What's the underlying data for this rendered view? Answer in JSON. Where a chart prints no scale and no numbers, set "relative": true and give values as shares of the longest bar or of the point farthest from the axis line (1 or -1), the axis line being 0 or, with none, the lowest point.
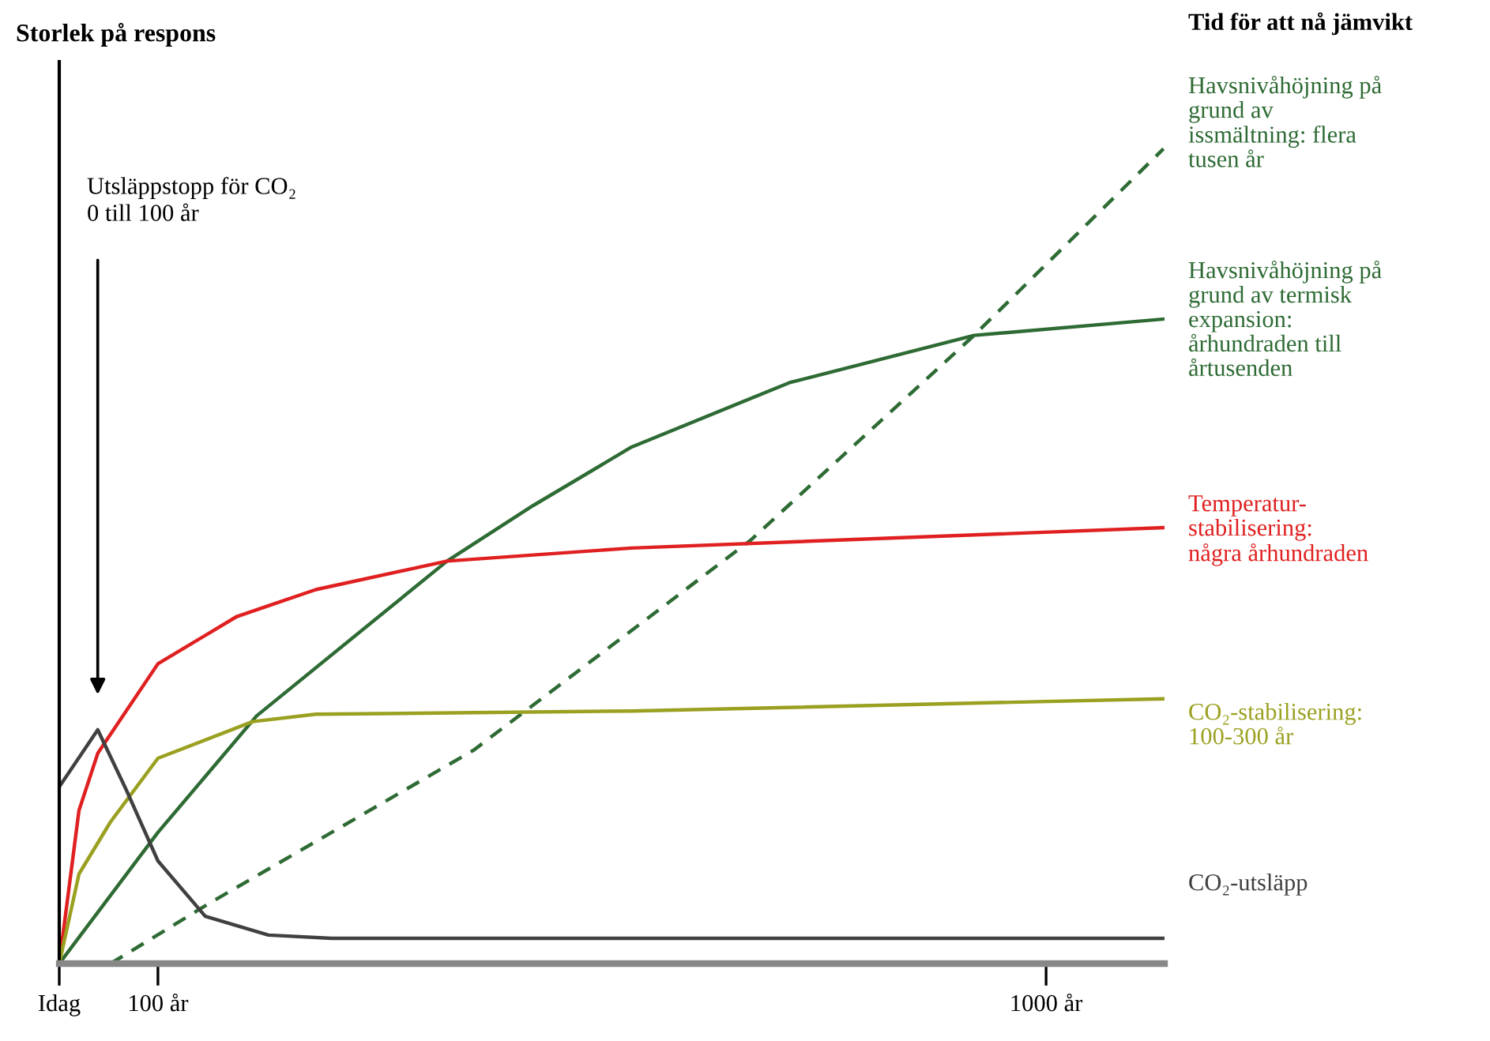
{
  "chart_data": {
    "type": "line",
    "relative": true,
    "ylabel": "Storlek på respons",
    "legend_title": "Tid för att nå jämvikt",
    "xlim": [
      0,
      1120
    ],
    "xticks": [
      {
        "value": 0,
        "label": "Idag"
      },
      {
        "value": 100,
        "label": "100 år"
      },
      {
        "value": 1000,
        "label": "1000 år"
      }
    ],
    "annotations": [
      "Utsläppstopp för CO₂\n0 till 100 år"
    ],
    "series": [
      {
        "name": "Havsnivåhöjning på\ngrund av\nissmältning: flera\ntusen år",
        "color": "#2e6b34",
        "line_style": "dashed",
        "x": [
          52,
          152,
          420,
          700,
          927,
          1119
        ],
        "values": [
          0,
          0.074,
          0.262,
          0.519,
          0.771,
          1.0
        ]
      },
      {
        "name": "Havsnivåhöjning på\ngrund av termisk\nexpansion:\nårhundraden till\nårtusenden",
        "color": "#2e6b34",
        "x": [
          0,
          100,
          200,
          393,
          480,
          580,
          740,
          927,
          1119
        ],
        "values": [
          0,
          0.161,
          0.304,
          0.494,
          0.562,
          0.634,
          0.713,
          0.771,
          0.791
        ]
      },
      {
        "name": "Temperatur-\nstabilisering:\nnågra århundraden",
        "color": "#e02020",
        "x": [
          0,
          20,
          39,
          100,
          180,
          260,
          393,
          580,
          1119
        ],
        "values": [
          0,
          0.188,
          0.258,
          0.368,
          0.426,
          0.459,
          0.494,
          0.51,
          0.535
        ]
      },
      {
        "name": "CO₂-stabilisering:\n100-300 år",
        "color": "#9aa020",
        "x": [
          0,
          20,
          52,
          100,
          196,
          260,
          580,
          1119
        ],
        "values": [
          0,
          0.11,
          0.174,
          0.252,
          0.297,
          0.306,
          0.31,
          0.325
        ]
      },
      {
        "name": "CO₂-utsläpp",
        "color": "#404040",
        "x": [
          0,
          39,
          68,
          100,
          148,
          212,
          276,
          1119
        ],
        "values": [
          0.217,
          0.287,
          0.213,
          0.126,
          0.058,
          0.035,
          0.031,
          0.031
        ]
      }
    ]
  }
}
